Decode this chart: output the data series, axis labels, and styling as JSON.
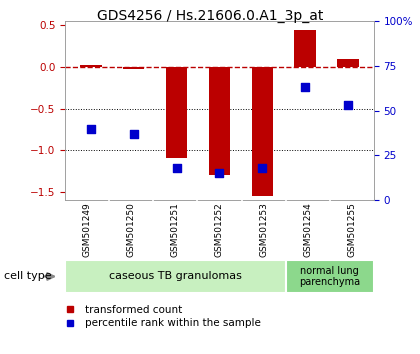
{
  "title": "GDS4256 / Hs.21606.0.A1_3p_at",
  "samples": [
    "GSM501249",
    "GSM501250",
    "GSM501251",
    "GSM501252",
    "GSM501253",
    "GSM501254",
    "GSM501255"
  ],
  "transformed_count": [
    0.02,
    -0.02,
    -1.1,
    -1.3,
    -1.55,
    0.45,
    0.1
  ],
  "percentile_rank": [
    40,
    37,
    18,
    15,
    18,
    63,
    53
  ],
  "ylim_left": [
    -1.6,
    0.55
  ],
  "ylim_right": [
    0,
    100
  ],
  "yticks_left": [
    -1.5,
    -1.0,
    -0.5,
    0.0,
    0.5
  ],
  "yticks_right": [
    0,
    25,
    50,
    75,
    100
  ],
  "ytick_labels_right": [
    "0",
    "25",
    "50",
    "75",
    "100%"
  ],
  "bar_color": "#bb0000",
  "dot_color": "#0000cc",
  "bar_width": 0.5,
  "dot_size": 40,
  "background_color": "#ffffff",
  "tick_label_fontsize": 7.5,
  "title_fontsize": 10,
  "legend_fontsize": 7.5,
  "cell_type_label_fontsize": 8,
  "sample_label_fontsize": 6.5,
  "gray_color": "#c8c8c8",
  "green_light": "#c8f0c0",
  "green_dark": "#8cd88c"
}
